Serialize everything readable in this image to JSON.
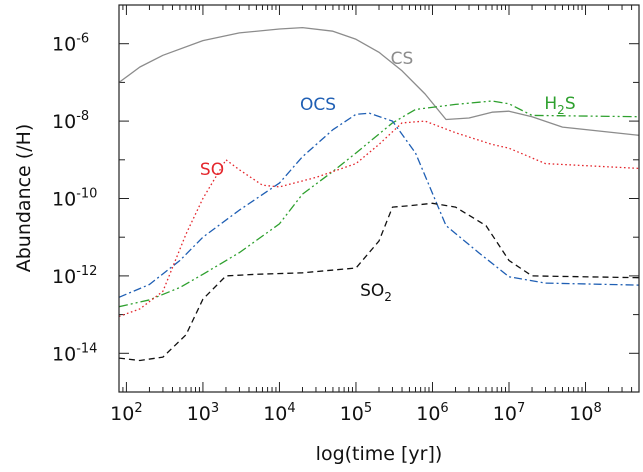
{
  "chart_data": {
    "type": "line",
    "xlabel": "log(time [yr])",
    "ylabel": "Abundance (/H)",
    "x_scale": "log",
    "y_scale": "log",
    "xlim": [
      80,
      500000000
    ],
    "ylim": [
      1e-15,
      1e-05
    ],
    "x_ticks": [
      {
        "base": "10",
        "exp": "2",
        "value": 100
      },
      {
        "base": "10",
        "exp": "3",
        "value": 1000
      },
      {
        "base": "10",
        "exp": "4",
        "value": 10000
      },
      {
        "base": "10",
        "exp": "5",
        "value": 100000
      },
      {
        "base": "10",
        "exp": "6",
        "value": 1000000
      },
      {
        "base": "10",
        "exp": "7",
        "value": 10000000
      },
      {
        "base": "10",
        "exp": "8",
        "value": 100000000
      }
    ],
    "y_ticks": [
      {
        "base": "10",
        "exp": "-6",
        "value": 1e-06
      },
      {
        "base": "10",
        "exp": "-8",
        "value": 1e-08
      },
      {
        "base": "10",
        "exp": "-10",
        "value": 1e-10
      },
      {
        "base": "10",
        "exp": "-12",
        "value": 1e-12
      },
      {
        "base": "10",
        "exp": "-14",
        "value": 1e-14
      }
    ],
    "legend": "inline labels",
    "series": [
      {
        "name": "CS",
        "label": "CS",
        "label_sub": "",
        "label_suffix": "",
        "color": "#8c8c8c",
        "dash": "",
        "points": [
          [
            80,
            1e-07
          ],
          [
            150,
            2.5e-07
          ],
          [
            300,
            5e-07
          ],
          [
            1000,
            1.2e-06
          ],
          [
            3000,
            1.9e-06
          ],
          [
            10000,
            2.4e-06
          ],
          [
            20000,
            2.6e-06
          ],
          [
            50000,
            2.1e-06
          ],
          [
            100000,
            1.3e-06
          ],
          [
            200000,
            6e-07
          ],
          [
            400000,
            2e-07
          ],
          [
            800000,
            5e-08
          ],
          [
            1500000,
            1.1e-08
          ],
          [
            3000000,
            1.2e-08
          ],
          [
            6000000,
            1.7e-08
          ],
          [
            10000000,
            1.8e-08
          ],
          [
            20000000,
            1.3e-08
          ],
          [
            50000000,
            7e-09
          ],
          [
            500000000,
            4.3e-09
          ]
        ]
      },
      {
        "name": "H2S",
        "label": "H",
        "label_sub": "2",
        "label_suffix": "S",
        "color": "#2ea02e",
        "dash": "9,3,2,3,2,3",
        "points": [
          [
            80,
            1.6e-13
          ],
          [
            200,
            2.4e-13
          ],
          [
            500,
            5e-13
          ],
          [
            1000,
            1.1e-12
          ],
          [
            3000,
            4e-12
          ],
          [
            10000,
            2.2e-11
          ],
          [
            20000,
            1.3e-10
          ],
          [
            50000,
            5e-10
          ],
          [
            100000,
            1.5e-09
          ],
          [
            300000,
            9e-09
          ],
          [
            600000,
            2e-08
          ],
          [
            2000000,
            2.7e-08
          ],
          [
            6000000,
            3.3e-08
          ],
          [
            10000000,
            2.8e-08
          ],
          [
            20000000,
            1.4e-08
          ],
          [
            500000000,
            1.3e-08
          ]
        ]
      },
      {
        "name": "OCS",
        "label": "OCS",
        "label_sub": "",
        "label_suffix": "",
        "color": "#1f5fb4",
        "dash": "8,3,2,3",
        "points": [
          [
            80,
            2.8e-13
          ],
          [
            200,
            6e-13
          ],
          [
            500,
            2.5e-12
          ],
          [
            1000,
            1e-11
          ],
          [
            3000,
            5e-11
          ],
          [
            10000,
            2.5e-10
          ],
          [
            20000,
            1.2e-09
          ],
          [
            50000,
            6e-09
          ],
          [
            100000,
            1.5e-08
          ],
          [
            150000,
            1.6e-08
          ],
          [
            300000,
            1e-08
          ],
          [
            600000,
            1.5e-09
          ],
          [
            1500000,
            2e-11
          ],
          [
            4000000,
            4e-12
          ],
          [
            10000000,
            9.5e-13
          ],
          [
            30000000,
            6.5e-13
          ],
          [
            500000000,
            5.8e-13
          ]
        ]
      },
      {
        "name": "SO",
        "label": "SO",
        "label_sub": "",
        "label_suffix": "",
        "color": "#e4262c",
        "dash": "1.6,2.6",
        "points": [
          [
            80,
            9e-14
          ],
          [
            150,
            1.4e-13
          ],
          [
            300,
            4e-13
          ],
          [
            600,
            1.2e-11
          ],
          [
            1000,
            1e-10
          ],
          [
            2000,
            1e-09
          ],
          [
            3000,
            5.5e-10
          ],
          [
            6000,
            2.2e-10
          ],
          [
            10000,
            2e-10
          ],
          [
            30000,
            3.5e-10
          ],
          [
            100000,
            8e-10
          ],
          [
            200000,
            2.5e-09
          ],
          [
            400000,
            9e-09
          ],
          [
            800000,
            1e-08
          ],
          [
            2000000,
            5e-09
          ],
          [
            6000000,
            2.5e-09
          ],
          [
            10000000,
            2e-09
          ],
          [
            30000000,
            8e-10
          ],
          [
            500000000,
            6e-10
          ]
        ]
      },
      {
        "name": "SO2",
        "label": "SO",
        "label_sub": "2",
        "label_suffix": "",
        "color": "#111111",
        "dash": "6,4",
        "points": [
          [
            80,
            7.5e-15
          ],
          [
            150,
            6.5e-15
          ],
          [
            300,
            8e-15
          ],
          [
            600,
            3e-14
          ],
          [
            1000,
            2.5e-13
          ],
          [
            2000,
            1e-12
          ],
          [
            5000,
            1.1e-12
          ],
          [
            20000,
            1.2e-12
          ],
          [
            100000,
            1.6e-12
          ],
          [
            200000,
            8e-12
          ],
          [
            300000,
            6e-11
          ],
          [
            500000,
            6.5e-11
          ],
          [
            1000000,
            7.5e-11
          ],
          [
            2000000,
            6e-11
          ],
          [
            5000000,
            2e-11
          ],
          [
            10000000,
            2.5e-12
          ],
          [
            20000000,
            1e-12
          ],
          [
            500000000,
            9e-13
          ]
        ]
      }
    ]
  }
}
